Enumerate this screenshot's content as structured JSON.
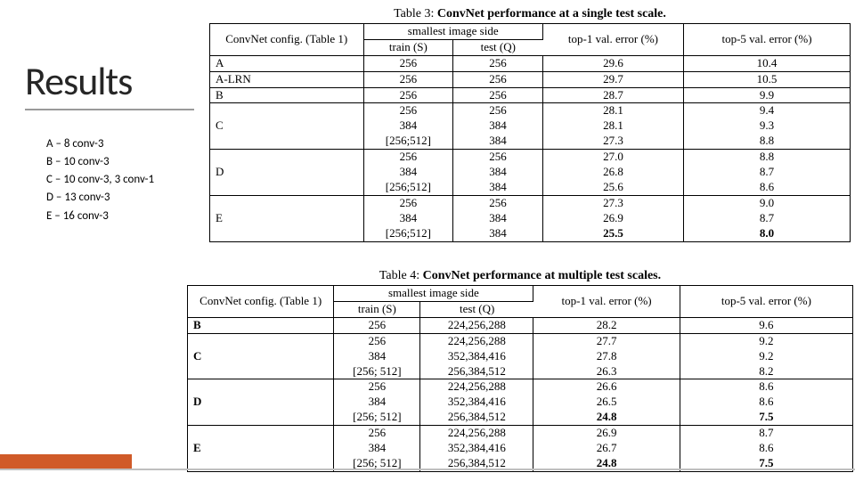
{
  "title": "Results",
  "legend": [
    "A – 8 conv-3",
    "B – 10 conv-3",
    "C – 10 conv-3, 3 conv-1",
    "D – 13 conv-3",
    "E – 16 conv-3"
  ],
  "table3": {
    "caption_prefix": "Table 3: ",
    "caption_bold": "ConvNet performance at a single test scale.",
    "headers": {
      "config": "ConvNet config. (Table 1)",
      "side": "smallest image side",
      "trainS": "train (S)",
      "testQ": "test (Q)",
      "top1": "top-1 val. error (%)",
      "top5": "top-5 val. error (%)"
    },
    "groups": [
      {
        "label": "A",
        "rows": [
          [
            "256",
            "256",
            "29.6",
            "10.4"
          ]
        ]
      },
      {
        "label": "A-LRN",
        "rows": [
          [
            "256",
            "256",
            "29.7",
            "10.5"
          ]
        ]
      },
      {
        "label": "B",
        "rows": [
          [
            "256",
            "256",
            "28.7",
            "9.9"
          ]
        ]
      },
      {
        "label": "C",
        "rows": [
          [
            "256",
            "256",
            "28.1",
            "9.4"
          ],
          [
            "384",
            "384",
            "28.1",
            "9.3"
          ],
          [
            "[256;512]",
            "384",
            "27.3",
            "8.8"
          ]
        ]
      },
      {
        "label": "D",
        "rows": [
          [
            "256",
            "256",
            "27.0",
            "8.8"
          ],
          [
            "384",
            "384",
            "26.8",
            "8.7"
          ],
          [
            "[256;512]",
            "384",
            "25.6",
            "8.6"
          ]
        ]
      },
      {
        "label": "E",
        "rows": [
          [
            "256",
            "256",
            "27.3",
            "9.0"
          ],
          [
            "384",
            "384",
            "26.9",
            "8.7"
          ],
          [
            "[256;512]",
            "384",
            "25.5",
            "8.0"
          ]
        ],
        "bold_last": true
      }
    ]
  },
  "table4": {
    "caption_prefix": "Table 4: ",
    "caption_bold": "ConvNet performance at multiple test scales.",
    "headers": {
      "config": "ConvNet config. (Table 1)",
      "side": "smallest image side",
      "trainS": "train (S)",
      "testQ": "test (Q)",
      "top1": "top-1 val. error (%)",
      "top5": "top-5 val. error (%)"
    },
    "groups": [
      {
        "label": "B",
        "rows": [
          [
            "256",
            "224,256,288",
            "28.2",
            "9.6"
          ]
        ]
      },
      {
        "label": "C",
        "rows": [
          [
            "256",
            "224,256,288",
            "27.7",
            "9.2"
          ],
          [
            "384",
            "352,384,416",
            "27.8",
            "9.2"
          ],
          [
            "[256; 512]",
            "256,384,512",
            "26.3",
            "8.2"
          ]
        ]
      },
      {
        "label": "D",
        "rows": [
          [
            "256",
            "224,256,288",
            "26.6",
            "8.6"
          ],
          [
            "384",
            "352,384,416",
            "26.5",
            "8.6"
          ],
          [
            "[256; 512]",
            "256,384,512",
            "24.8",
            "7.5"
          ]
        ],
        "bold_last": true
      },
      {
        "label": "E",
        "rows": [
          [
            "256",
            "224,256,288",
            "26.9",
            "8.7"
          ],
          [
            "384",
            "352,384,416",
            "26.7",
            "8.6"
          ],
          [
            "[256; 512]",
            "256,384,512",
            "24.8",
            "7.5"
          ]
        ],
        "bold_last": true
      }
    ]
  },
  "colors": {
    "background": "#ffffff",
    "title_color": "#262626",
    "title_underline": "#9a9a9a",
    "table_border": "#000000",
    "accent": "#d05a28",
    "base_line": "#bfbfbf"
  },
  "typography": {
    "title_fontsize": 44,
    "legend_fontsize": 13,
    "table_fontsize": 13,
    "caption_fontsize": 14,
    "serif_family": "Times New Roman",
    "sans_family": "Segoe UI"
  }
}
